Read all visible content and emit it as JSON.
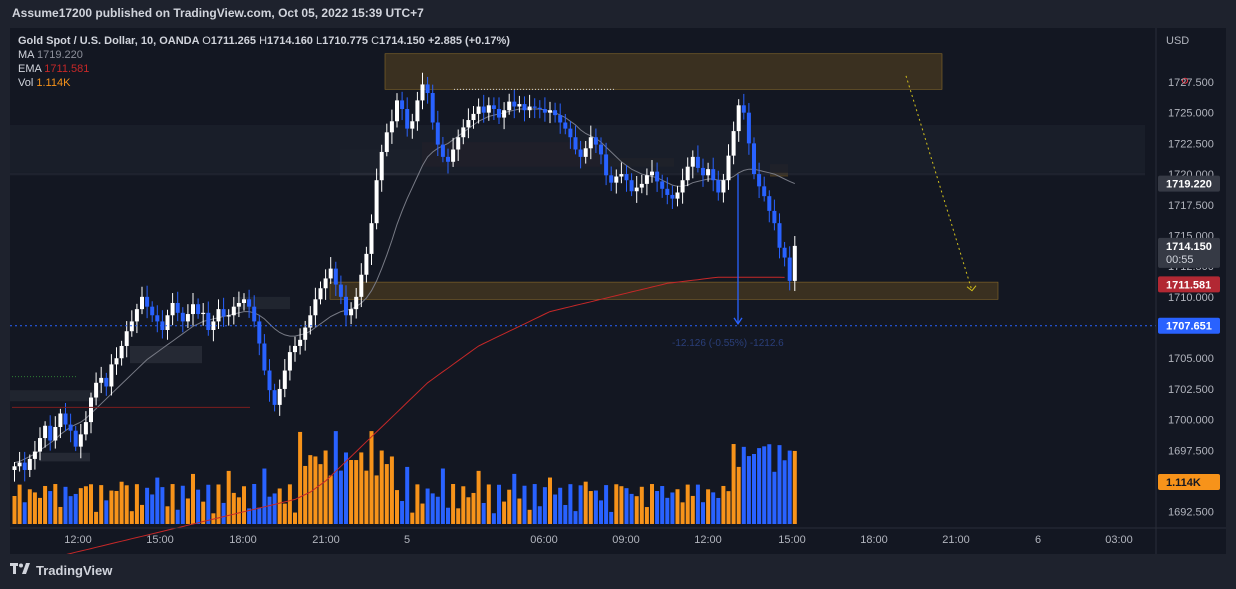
{
  "header": {
    "published_text": "Assume17200 published on TradingView.com, Oct 05, 2022 15:39 UTC+7"
  },
  "footer": {
    "brand": "TradingView"
  },
  "legend": {
    "symbol": "Gold Spot / U.S. Dollar, 10, OANDA",
    "o_label": "O",
    "o_value": "1711.265",
    "h_label": "H",
    "h_value": "1714.160",
    "l_label": "L",
    "l_value": "1710.775",
    "c_label": "C",
    "c_value": "1714.150",
    "change": "+2.885 (+0.17%)",
    "ma_label": "MA",
    "ma_value": "1719.220",
    "ema_label": "EMA",
    "ema_value": "1711.581",
    "vol_label": "Vol",
    "vol_value": "1.114K"
  },
  "measure_text": "-12.126 (-0.55%) -1212.6",
  "price_badges": {
    "ma": "1719.220",
    "last_price": "1714.150",
    "countdown": "00:55",
    "ema": "1711.581",
    "hline": "1707.651",
    "volume": "1.114K"
  },
  "colors": {
    "up": "#ffffff",
    "down": "#2962ff",
    "ema": "#c62828",
    "ma": "#787b86",
    "vol_up": "#f7931a",
    "vol_down": "#2962ff",
    "zone": "#6b5020",
    "red_zone": "#5a232a",
    "hline": "#2962ff",
    "projection": "#d4c21c"
  },
  "chart_data": {
    "type": "candlestick",
    "symbol": "Gold Spot / U.S. Dollar",
    "interval": "10",
    "currency_label": "USD",
    "y_ticks": [
      "1727.500",
      "1725.000",
      "1722.500",
      "1720.000",
      "1717.500",
      "1715.000",
      "1712.500",
      "1710.000",
      "1707.500",
      "1705.000",
      "1702.500",
      "1700.000",
      "1697.500",
      "1692.500"
    ],
    "x_ticks": [
      "12:00",
      "15:00",
      "18:00",
      "21:00",
      "5",
      "06:00",
      "09:00",
      "12:00",
      "15:00",
      "18:00",
      "21:00",
      "6",
      "03:00"
    ],
    "ylim": [
      1691.5,
      1731.0
    ],
    "close_series": [
      1696.2,
      1696.5,
      1695.9,
      1696.8,
      1697.4,
      1698.5,
      1699.5,
      1698.3,
      1699.4,
      1700.5,
      1699.6,
      1699.1,
      1697.8,
      1698.8,
      1699.8,
      1701.8,
      1703.0,
      1703.4,
      1702.7,
      1704.5,
      1705.0,
      1706.0,
      1707.2,
      1708.0,
      1709.0,
      1710.0,
      1709.2,
      1708.5,
      1708.0,
      1707.3,
      1708.5,
      1709.5,
      1708.7,
      1708.0,
      1708.6,
      1709.4,
      1708.6,
      1708.7,
      1707.3,
      1708.0,
      1709.0,
      1708.4,
      1708.5,
      1709.2,
      1709.5,
      1709.8,
      1709.2,
      1708.0,
      1706.2,
      1704.0,
      1702.4,
      1701.2,
      1702.5,
      1704.0,
      1705.5,
      1706.0,
      1706.5,
      1707.5,
      1708.5,
      1709.8,
      1710.7,
      1711.5,
      1712.3,
      1711.0,
      1710.0,
      1708.5,
      1709.0,
      1710.0,
      1711.8,
      1713.5,
      1716.0,
      1719.5,
      1721.8,
      1723.4,
      1724.3,
      1726.0,
      1725.3,
      1723.7,
      1724.3,
      1726.0,
      1727.3,
      1726.6,
      1724.2,
      1722.4,
      1721.4,
      1721.0,
      1722.0,
      1723.0,
      1723.8,
      1724.4,
      1724.9,
      1725.5,
      1725.0,
      1725.6,
      1725.3,
      1724.6,
      1725.2,
      1725.9,
      1725.5,
      1725.7,
      1725.2,
      1725.5,
      1725.4,
      1725.3,
      1725.0,
      1725.2,
      1724.8,
      1724.2,
      1723.7,
      1723.0,
      1722.0,
      1721.4,
      1722.1,
      1723.0,
      1722.4,
      1721.6,
      1719.9,
      1719.3,
      1719.8,
      1720.0,
      1719.5,
      1718.6,
      1718.9,
      1719.2,
      1719.9,
      1720.2,
      1719.4,
      1718.8,
      1718.3,
      1718.0,
      1718.5,
      1719.5,
      1720.6,
      1721.4,
      1720.5,
      1719.9,
      1720.4,
      1719.5,
      1718.5,
      1719.5,
      1721.5,
      1723.5,
      1725.6,
      1725.0,
      1722.5,
      1720.0,
      1719.0,
      1718.2,
      1717.0,
      1716.0,
      1714.0,
      1713.2,
      1711.3,
      1714.15
    ],
    "ma": {
      "name": "MA",
      "last": 1719.22,
      "values": [
        1696.5,
        1696.6,
        1696.8,
        1697.0,
        1697.2,
        1697.5,
        1697.8,
        1698.1,
        1698.4,
        1698.8,
        1699.1,
        1699.4,
        1699.6,
        1699.8,
        1700.1,
        1700.5,
        1700.9,
        1701.3,
        1701.7,
        1702.1,
        1702.5,
        1702.9,
        1703.3,
        1703.7,
        1704.1,
        1704.5,
        1704.9,
        1705.2,
        1705.5,
        1705.8,
        1706.1,
        1706.4,
        1706.7,
        1707.0,
        1707.3,
        1707.6,
        1707.8,
        1708.0,
        1708.1,
        1708.2,
        1708.3,
        1708.4,
        1708.5,
        1708.6,
        1708.7,
        1708.8,
        1708.8,
        1708.7,
        1708.5,
        1708.2,
        1707.8,
        1707.4,
        1707.1,
        1706.9,
        1706.8,
        1706.8,
        1706.9,
        1707.0,
        1707.2,
        1707.5,
        1707.8,
        1708.1,
        1708.4,
        1708.6,
        1708.8,
        1708.9,
        1709.0,
        1709.2,
        1709.5,
        1709.9,
        1710.5,
        1711.3,
        1712.3,
        1713.4,
        1714.6,
        1715.9,
        1717.0,
        1718.0,
        1718.9,
        1719.8,
        1720.7,
        1721.4,
        1721.8,
        1722.1,
        1722.3,
        1722.5,
        1722.8,
        1723.1,
        1723.4,
        1723.7,
        1724.0,
        1724.3,
        1724.5,
        1724.7,
        1724.8,
        1724.9,
        1725.0,
        1725.1,
        1725.2,
        1725.3,
        1725.3,
        1725.3,
        1725.3,
        1725.3,
        1725.2,
        1725.1,
        1725.0,
        1724.8,
        1724.6,
        1724.3,
        1724.0,
        1723.6,
        1723.3,
        1723.1,
        1722.9,
        1722.6,
        1722.2,
        1721.8,
        1721.4,
        1721.0,
        1720.7,
        1720.4,
        1720.2,
        1720.0,
        1719.9,
        1719.8,
        1719.7,
        1719.5,
        1719.3,
        1719.1,
        1719.0,
        1719.0,
        1719.1,
        1719.3,
        1719.4,
        1719.5,
        1719.6,
        1719.6,
        1719.5,
        1719.5,
        1719.6,
        1719.8,
        1720.1,
        1720.3,
        1720.4,
        1720.4,
        1720.3,
        1720.2,
        1720.1,
        1720.0,
        1719.8,
        1719.6,
        1719.4,
        1719.22
      ]
    },
    "ema": {
      "name": "EMA",
      "last": 1711.581,
      "values": [
        1688.0,
        1688.1,
        1688.2,
        1688.3,
        1688.4,
        1688.5,
        1688.6,
        1688.7,
        1688.8,
        1688.9,
        1689.0,
        1689.1,
        1689.2,
        1689.3,
        1689.4,
        1689.5,
        1689.6,
        1689.7,
        1689.8,
        1689.9,
        1690.0,
        1690.1,
        1690.2,
        1690.3,
        1690.4,
        1690.5,
        1690.6,
        1690.7,
        1690.8,
        1690.9,
        1691.0,
        1691.1,
        1691.2,
        1691.3,
        1691.4,
        1691.5,
        1691.6,
        1691.7,
        1691.8,
        1691.9,
        1692.0,
        1692.1,
        1692.2,
        1692.3,
        1692.4,
        1692.5,
        1692.6,
        1692.7,
        1692.8,
        1692.9,
        1693.0,
        1693.1,
        1693.2,
        1693.3,
        1693.4,
        1693.5,
        1693.7,
        1693.9,
        1694.1,
        1694.4,
        1694.7,
        1695.0,
        1695.4,
        1695.8,
        1696.2,
        1696.6,
        1697.0,
        1697.4,
        1697.8,
        1698.2,
        1698.6,
        1699.0,
        1699.4,
        1699.8,
        1700.2,
        1700.6,
        1701.0,
        1701.4,
        1701.8,
        1702.2,
        1702.6,
        1703.0,
        1703.3,
        1703.6,
        1703.9,
        1704.2,
        1704.5,
        1704.8,
        1705.1,
        1705.4,
        1705.7,
        1706.0,
        1706.2,
        1706.4,
        1706.6,
        1706.8,
        1707.0,
        1707.2,
        1707.4,
        1707.6,
        1707.8,
        1708.0,
        1708.2,
        1708.4,
        1708.6,
        1708.8,
        1708.9,
        1709.0,
        1709.1,
        1709.2,
        1709.3,
        1709.4,
        1709.5,
        1709.6,
        1709.7,
        1709.8,
        1709.9,
        1710.0,
        1710.1,
        1710.2,
        1710.3,
        1710.4,
        1710.5,
        1710.6,
        1710.7,
        1710.8,
        1710.9,
        1711.0,
        1711.1,
        1711.15,
        1711.2,
        1711.25,
        1711.3,
        1711.35,
        1711.4,
        1711.45,
        1711.5,
        1711.55,
        1711.6,
        1711.6,
        1711.6,
        1711.6,
        1711.6,
        1711.6,
        1711.6,
        1711.6,
        1711.6,
        1711.6,
        1711.6,
        1711.6,
        1711.6,
        1711.581
      ]
    },
    "volume": {
      "name": "Vol",
      "last": "1.114K"
    },
    "annotations": {
      "horizontal_line": 1707.651,
      "measure_label": "-12.126 (-0.55%) -1212.6",
      "supply_zone": [
        1726.9,
        1729.8
      ],
      "demand_zone": [
        1709.8,
        1711.2
      ]
    }
  }
}
